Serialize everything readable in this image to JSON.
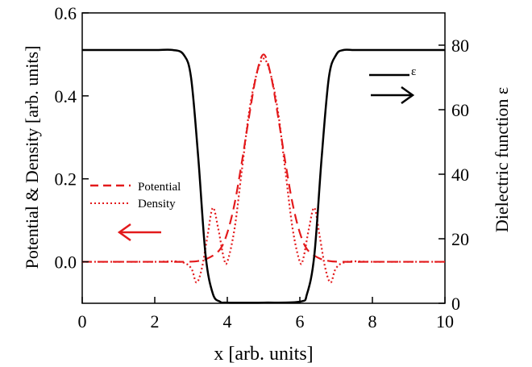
{
  "chart_data": {
    "type": "line",
    "title": "",
    "xlabel": "x [arb. units]",
    "ylabel_left": "Potential & Density [arb. units]",
    "ylabel_right": "Dielectric function ε",
    "xlim": [
      0,
      10
    ],
    "ylim_left": [
      -0.1,
      0.6
    ],
    "ylim_right": [
      0,
      90
    ],
    "x_ticks": [
      0,
      2,
      4,
      6,
      8,
      10
    ],
    "y_left_ticks": [
      0.0,
      0.2,
      0.4,
      0.6
    ],
    "y_right_ticks": [
      0,
      20,
      40,
      60,
      80
    ],
    "x_tick_labels": [
      "0",
      "2",
      "4",
      "6",
      "8",
      "10"
    ],
    "y_left_tick_labels": [
      "0.0",
      "0.2",
      "0.4",
      "0.6"
    ],
    "y_right_tick_labels": [
      "0",
      "20",
      "40",
      "60",
      "80"
    ],
    "grid": false,
    "legend_left": {
      "placement": "left-middle",
      "entries": [
        "Potential",
        "Density"
      ]
    },
    "legend_right": {
      "placement": "top-right",
      "entries": [
        "ε"
      ]
    },
    "series": [
      {
        "name": "Potential",
        "axis": "left",
        "color": "#e31a1c",
        "dash": "dashed",
        "x": [
          0,
          1,
          2,
          2.8,
          3.2,
          3.5,
          3.8,
          4.0,
          4.2,
          4.4,
          4.6,
          4.8,
          5.0,
          5.2,
          5.4,
          5.6,
          5.8,
          6.0,
          6.2,
          6.5,
          6.8,
          7.2,
          8,
          9,
          10
        ],
        "values": [
          0,
          0,
          0,
          0,
          0.002,
          0.01,
          0.03,
          0.07,
          0.14,
          0.24,
          0.35,
          0.45,
          0.5,
          0.45,
          0.35,
          0.24,
          0.14,
          0.07,
          0.03,
          0.01,
          0.002,
          0,
          0,
          0,
          0
        ]
      },
      {
        "name": "Density",
        "axis": "left",
        "color": "#e31a1c",
        "dash": "dotted",
        "x": [
          0,
          1,
          2,
          2.7,
          3.0,
          3.15,
          3.3,
          3.45,
          3.6,
          3.75,
          3.9,
          4.0,
          4.2,
          4.4,
          4.6,
          4.8,
          5.0,
          5.2,
          5.4,
          5.6,
          5.8,
          6.0,
          6.1,
          6.25,
          6.4,
          6.55,
          6.7,
          6.85,
          7.0,
          7.3,
          8,
          9,
          10
        ],
        "values": [
          0,
          0,
          0,
          0,
          -0.015,
          -0.05,
          -0.015,
          0.06,
          0.13,
          0.08,
          0.01,
          0.0,
          0.08,
          0.22,
          0.36,
          0.45,
          0.49,
          0.45,
          0.36,
          0.22,
          0.08,
          0.0,
          0.01,
          0.08,
          0.13,
          0.06,
          -0.015,
          -0.05,
          -0.015,
          0,
          0,
          0,
          0
        ]
      },
      {
        "name": "ε",
        "axis": "right",
        "color": "#000000",
        "dash": "solid",
        "x": [
          0,
          1,
          2,
          2.5,
          2.8,
          3.0,
          3.2,
          3.4,
          3.6,
          3.8,
          4.0,
          5.0,
          6.0,
          6.2,
          6.4,
          6.6,
          6.8,
          7.0,
          7.2,
          7.5,
          8,
          9,
          10
        ],
        "values": [
          78.5,
          78.5,
          78.5,
          78.5,
          77,
          70,
          45,
          15,
          3,
          0.5,
          0.2,
          0.2,
          0.5,
          3,
          15,
          45,
          70,
          77,
          78.5,
          78.5,
          78.5,
          78.5,
          78.5
        ]
      }
    ],
    "arrows": [
      {
        "direction": "left",
        "color": "#e31a1c",
        "meaning": "left axis"
      },
      {
        "direction": "right",
        "color": "#000000",
        "meaning": "right axis"
      }
    ]
  }
}
